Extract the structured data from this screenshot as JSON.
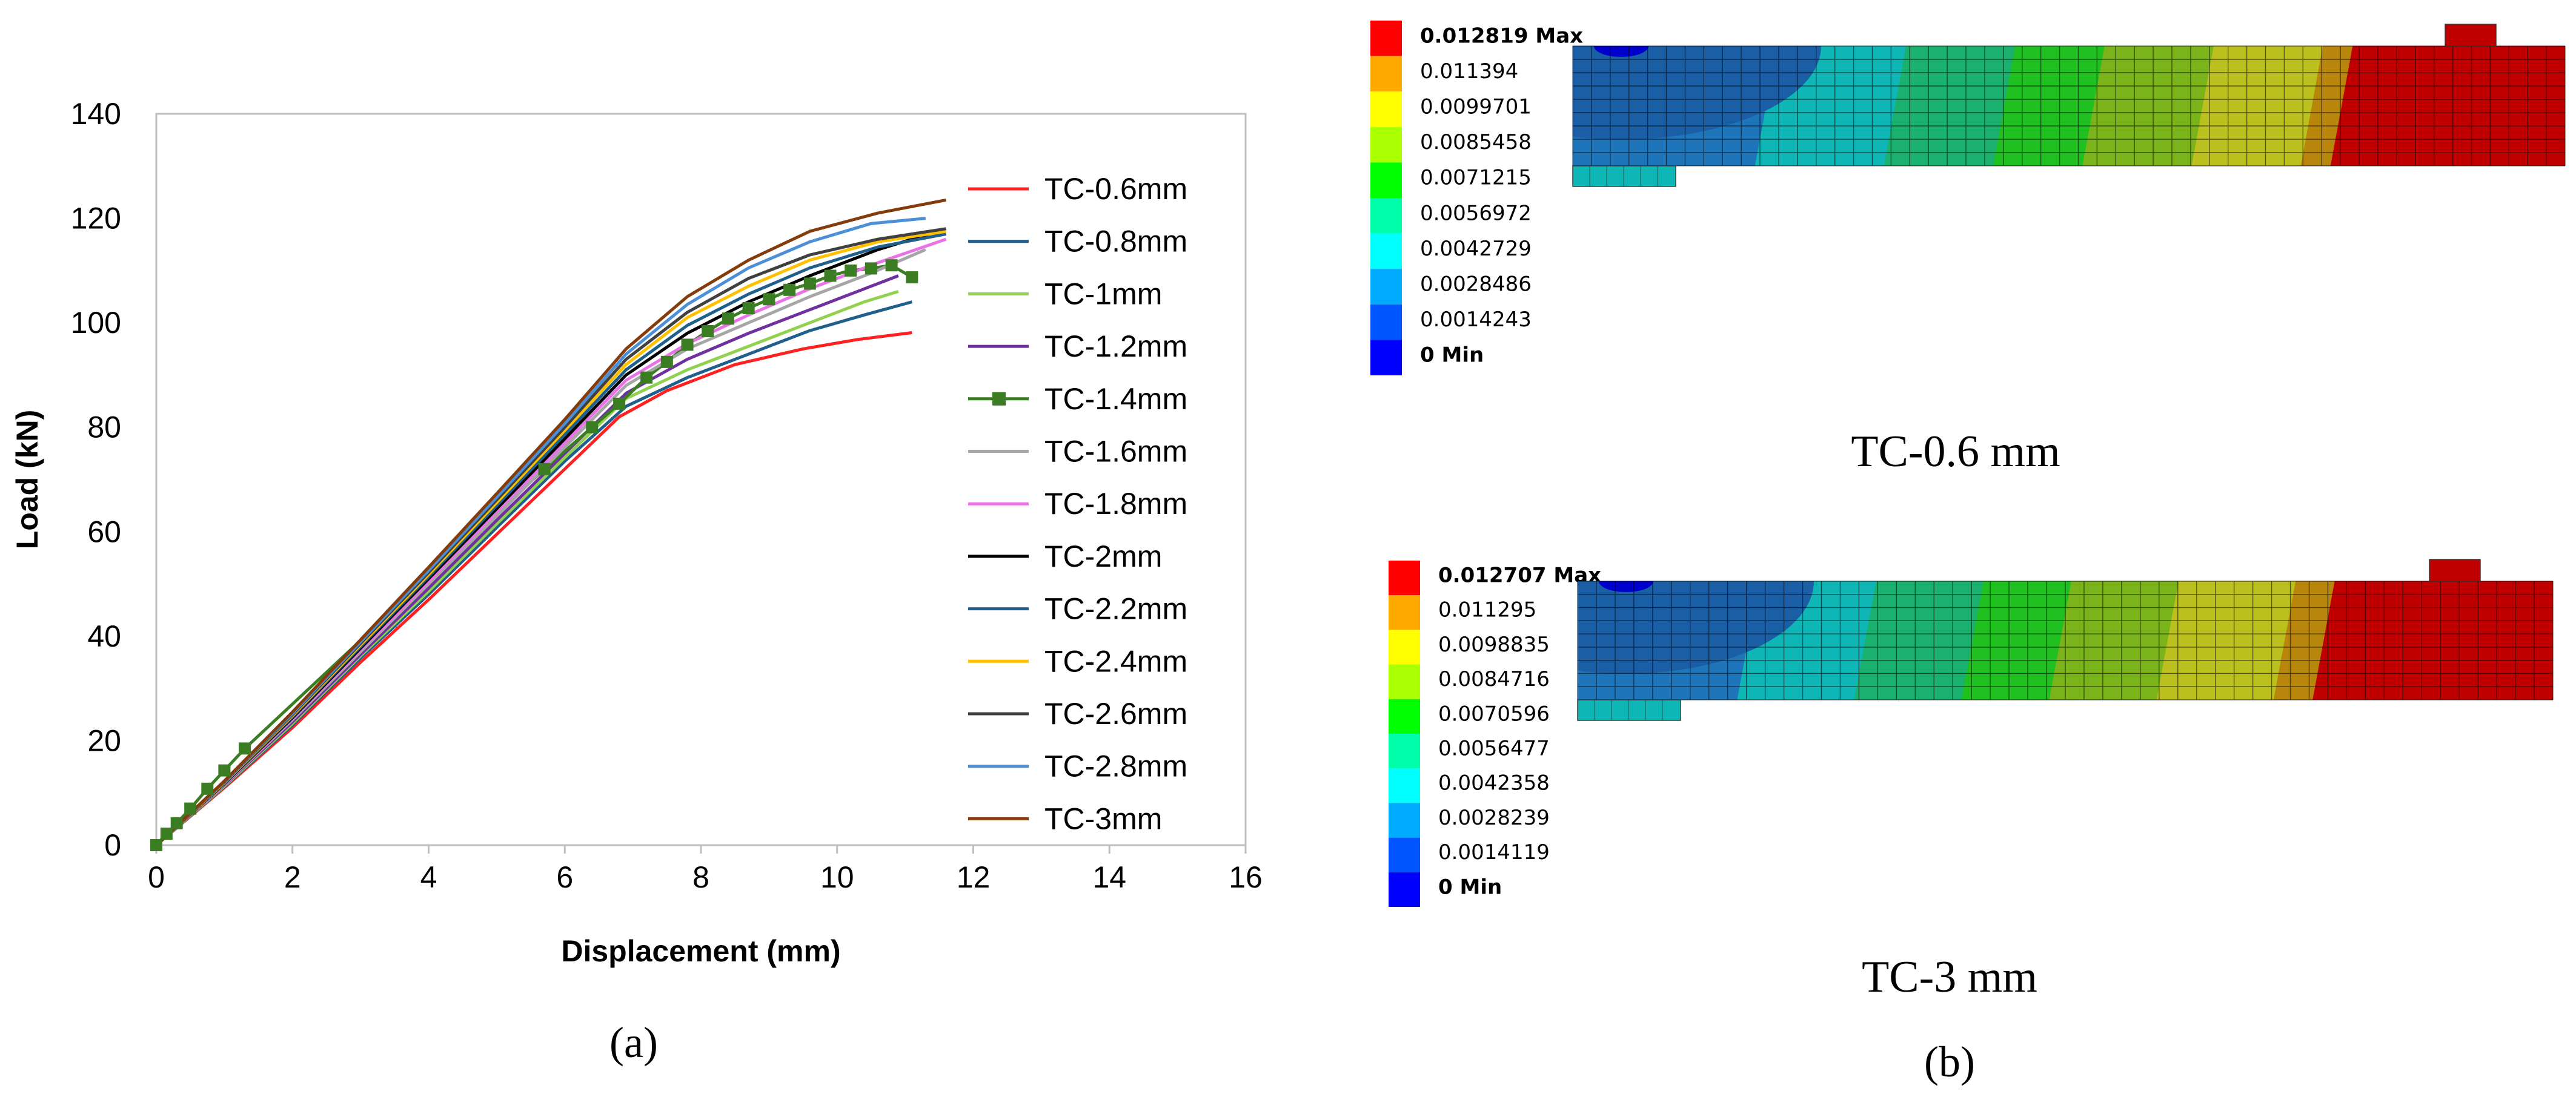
{
  "chart_data": [
    {
      "type": "line",
      "panel_label": "(a)",
      "xlabel": "Displacement (mm)",
      "ylabel": "Load (kN)",
      "xlim": [
        0,
        16
      ],
      "ylim": [
        0,
        140
      ],
      "xticks": [
        0,
        2,
        4,
        6,
        8,
        10,
        12,
        14,
        16
      ],
      "yticks": [
        0,
        20,
        40,
        60,
        80,
        100,
        120,
        140
      ],
      "legend_position": "right",
      "series": [
        {
          "name": "TC-0.6mm",
          "color": "#ff2020",
          "marker": "none",
          "x": [
            0,
            1,
            2,
            3,
            4,
            5,
            6,
            6.8,
            7.5,
            8.5,
            9.5,
            10.3,
            11.1
          ],
          "y": [
            0,
            11,
            22.5,
            35,
            47,
            59.5,
            72,
            82,
            87,
            92,
            95,
            96.8,
            98.1
          ]
        },
        {
          "name": "TC-0.8mm",
          "color": "#1f5f8b",
          "marker": "none",
          "x": [
            0,
            1,
            2,
            3,
            4,
            5,
            6,
            6.9,
            7.8,
            8.7,
            9.6,
            10.4,
            11.1
          ],
          "y": [
            0,
            11.2,
            23,
            35.8,
            48,
            60.8,
            73.5,
            84,
            89.5,
            94,
            98.5,
            101.5,
            104
          ]
        },
        {
          "name": "TC-1mm",
          "color": "#92d050",
          "marker": "none",
          "x": [
            0,
            1,
            2,
            3,
            4,
            5,
            6,
            6.9,
            7.8,
            8.7,
            9.6,
            10.4,
            10.9
          ],
          "y": [
            0,
            11.3,
            23.3,
            36.2,
            48.6,
            61.5,
            74.2,
            85.5,
            91,
            95.5,
            100,
            104,
            106
          ]
        },
        {
          "name": "TC-1.2mm",
          "color": "#7030a0",
          "marker": "none",
          "x": [
            0,
            1,
            2,
            3,
            4,
            5,
            6,
            6.9,
            7.8,
            8.7,
            9.6,
            10.4,
            10.9
          ],
          "y": [
            0,
            11.5,
            23.6,
            36.5,
            49.2,
            62.2,
            75,
            86.5,
            93,
            98,
            102.5,
            106.5,
            109
          ]
        },
        {
          "name": "TC-1.4mm",
          "color": "#3a7d22",
          "marker": "square",
          "x": [
            0,
            0.15,
            0.3,
            0.5,
            0.75,
            1,
            1.3,
            5.7,
            6.4,
            6.8,
            7.2,
            7.5,
            7.8,
            8.1,
            8.4,
            8.7,
            9.0,
            9.3,
            9.6,
            9.9,
            10.2,
            10.5,
            10.8,
            11.1
          ],
          "y": [
            0,
            2.2,
            4.2,
            7,
            10.8,
            14.3,
            18.5,
            72,
            80,
            84.5,
            89.5,
            92.5,
            95.8,
            98.4,
            100.8,
            102.8,
            104.5,
            106.3,
            107.5,
            109,
            110,
            110.4,
            111,
            108.7
          ]
        },
        {
          "name": "TC-1.6mm",
          "color": "#a6a6a6",
          "marker": "none",
          "x": [
            0,
            1,
            2,
            3,
            4,
            5,
            6,
            6.9,
            7.8,
            8.7,
            9.6,
            10.5,
            11.3
          ],
          "y": [
            0,
            11.6,
            24,
            37,
            50,
            63,
            76.2,
            88,
            95,
            100,
            105,
            109.5,
            114
          ]
        },
        {
          "name": "TC-1.8mm",
          "color": "#e872e6",
          "marker": "none",
          "x": [
            0,
            1,
            2,
            3,
            4,
            5,
            6,
            6.9,
            7.8,
            8.7,
            9.6,
            10.6,
            11.6
          ],
          "y": [
            0,
            11.7,
            24.2,
            37.4,
            50.5,
            63.8,
            77,
            89,
            96,
            101.5,
            106.5,
            111.5,
            116
          ]
        },
        {
          "name": "TC-2mm",
          "color": "#000000",
          "marker": "none",
          "x": [
            0,
            1,
            2,
            3,
            4,
            5,
            6,
            6.9,
            7.8,
            8.7,
            9.6,
            10.6,
            11.6
          ],
          "y": [
            0,
            11.8,
            24.4,
            37.7,
            51,
            64.4,
            77.8,
            90,
            98,
            104,
            109,
            114,
            118
          ]
        },
        {
          "name": "TC-2.2mm",
          "color": "#1f5f8b",
          "marker": "none",
          "x": [
            0,
            1,
            2,
            3,
            4,
            5,
            6,
            6.9,
            7.8,
            8.7,
            9.6,
            10.6,
            11.6
          ],
          "y": [
            0,
            11.9,
            24.6,
            38,
            51.4,
            65,
            78.6,
            91,
            99.5,
            105.5,
            110.5,
            114.5,
            117
          ]
        },
        {
          "name": "TC-2.4mm",
          "color": "#ffc000",
          "marker": "none",
          "x": [
            0,
            1,
            2,
            3,
            4,
            5,
            6,
            6.9,
            7.8,
            8.7,
            9.6,
            10.6,
            11.6
          ],
          "y": [
            0,
            12,
            24.8,
            38.3,
            51.8,
            65.6,
            79.4,
            92,
            101,
            107,
            112,
            115.5,
            117.5
          ]
        },
        {
          "name": "TC-2.6mm",
          "color": "#404040",
          "marker": "none",
          "x": [
            0,
            1,
            2,
            3,
            4,
            5,
            6,
            6.9,
            7.8,
            8.7,
            9.6,
            10.6,
            11.6
          ],
          "y": [
            0,
            12.1,
            25,
            38.6,
            52.2,
            66.1,
            80,
            93,
            102,
            108.5,
            113,
            116,
            118
          ]
        },
        {
          "name": "TC-2.8mm",
          "color": "#4a8fd8",
          "marker": "none",
          "x": [
            0,
            1,
            2,
            3,
            4,
            5,
            6,
            6.9,
            7.8,
            8.7,
            9.6,
            10.5,
            11.3
          ],
          "y": [
            0,
            12.2,
            25.2,
            38.9,
            52.6,
            66.6,
            80.7,
            94,
            103.5,
            110.5,
            115.5,
            119,
            120
          ]
        },
        {
          "name": "TC-3mm",
          "color": "#843c0c",
          "marker": "none",
          "x": [
            0,
            1,
            2,
            3,
            4,
            5,
            6,
            6.9,
            7.8,
            8.7,
            9.6,
            10.6,
            11.6
          ],
          "y": [
            0,
            12.3,
            25.5,
            39.3,
            53.2,
            67.3,
            81.5,
            95,
            105,
            112,
            117.5,
            121,
            123.5
          ]
        }
      ]
    },
    {
      "type": "heatmap",
      "title": "TC-0.6 mm",
      "legend_labels": [
        "0.012819 Max",
        "0.011394",
        "0.0099701",
        "0.0085458",
        "0.0071215",
        "0.0056972",
        "0.0042729",
        "0.0028486",
        "0.0014243",
        "0 Min"
      ],
      "legend_colors": [
        "#ff0000",
        "#ffaa00",
        "#ffff00",
        "#aaff00",
        "#00ff00",
        "#00ffaa",
        "#00ffff",
        "#00aaff",
        "#0055ff",
        "#0000ff"
      ],
      "contour_bands": [
        "#1f75ba",
        "#0fb6b6",
        "#1ab06e",
        "#20c020",
        "#7ab41a",
        "#bcc01e",
        "#b8860a",
        "#c00000"
      ]
    },
    {
      "type": "heatmap",
      "title": "TC-3 mm",
      "legend_labels": [
        "0.012707 Max",
        "0.011295",
        "0.0098835",
        "0.0084716",
        "0.0070596",
        "0.0056477",
        "0.0042358",
        "0.0028239",
        "0.0014119",
        "0 Min"
      ],
      "legend_colors": [
        "#ff0000",
        "#ffaa00",
        "#ffff00",
        "#aaff00",
        "#00ff00",
        "#00ffaa",
        "#00ffff",
        "#00aaff",
        "#0055ff",
        "#0000ff"
      ],
      "contour_bands": [
        "#1f75ba",
        "#0fb6b6",
        "#1ab06e",
        "#20c020",
        "#7ab41a",
        "#bcc01e",
        "#b8860a",
        "#c00000"
      ]
    }
  ],
  "panel_b_label": "(b)",
  "colors": {
    "axis": "#bfbfbf",
    "text": "#000000",
    "mesh": "#000000"
  }
}
